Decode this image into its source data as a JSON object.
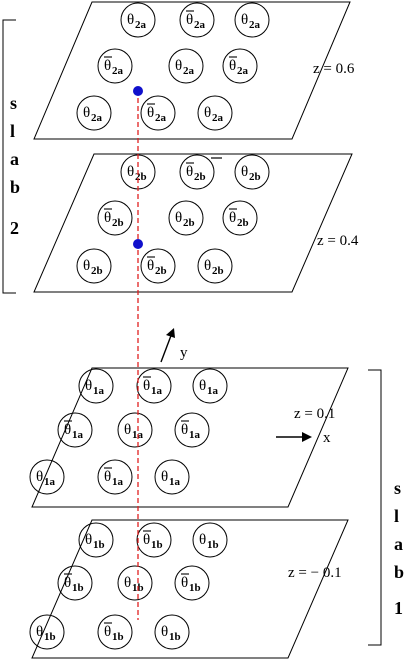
{
  "symbol": "θ",
  "colors": {
    "line": "#000000",
    "guide": "#e02020",
    "atom": "#1010cc"
  },
  "slabs": [
    {
      "letters": [
        "s",
        "l",
        "a",
        "b",
        "2"
      ],
      "planes": [
        {
          "z_label": "z = 0.6",
          "atoms": [
            {
              "sub": "2a",
              "bar": false
            },
            {
              "sub": "2a",
              "bar": true
            },
            {
              "sub": "2a",
              "bar": false
            },
            {
              "sub": "2a",
              "bar": true
            },
            {
              "sub": "2a",
              "bar": false
            },
            {
              "sub": "2a",
              "bar": true
            },
            {
              "sub": "2a",
              "bar": false
            },
            {
              "sub": "2a",
              "bar": true
            },
            {
              "sub": "2a",
              "bar": false
            }
          ]
        },
        {
          "z_label": "z =  0.4",
          "atoms": [
            {
              "sub": "2b",
              "bar": false
            },
            {
              "sub": "2b",
              "bar": true
            },
            {
              "sub": "2b",
              "bar": false
            },
            {
              "sub": "2b",
              "bar": true
            },
            {
              "sub": "2b",
              "bar": false
            },
            {
              "sub": "2b",
              "bar": true
            },
            {
              "sub": "2b",
              "bar": false
            },
            {
              "sub": "2b",
              "bar": true
            },
            {
              "sub": "2b",
              "bar": false
            }
          ]
        }
      ]
    },
    {
      "letters": [
        "s",
        "l",
        "a",
        "b",
        "1"
      ],
      "planes": [
        {
          "z_label": "z = 0.1",
          "atoms": [
            {
              "sub": "1a",
              "bar": false
            },
            {
              "sub": "1a",
              "bar": true
            },
            {
              "sub": "1a",
              "bar": false
            },
            {
              "sub": "1a",
              "bar": true
            },
            {
              "sub": "1a",
              "bar": false
            },
            {
              "sub": "1a",
              "bar": true
            },
            {
              "sub": "1a",
              "bar": false
            },
            {
              "sub": "1a",
              "bar": true
            },
            {
              "sub": "1a",
              "bar": false
            }
          ]
        },
        {
          "z_label": "z = − 0.1",
          "atoms": [
            {
              "sub": "1b",
              "bar": false
            },
            {
              "sub": "1b",
              "bar": true
            },
            {
              "sub": "1b",
              "bar": false
            },
            {
              "sub": "1b",
              "bar": true
            },
            {
              "sub": "1b",
              "bar": false
            },
            {
              "sub": "1b",
              "bar": true
            },
            {
              "sub": "1b",
              "bar": false
            },
            {
              "sub": "1b",
              "bar": true
            },
            {
              "sub": "1b",
              "bar": false
            }
          ]
        }
      ]
    }
  ],
  "axes": {
    "y_label": "y",
    "x_label": "x"
  }
}
